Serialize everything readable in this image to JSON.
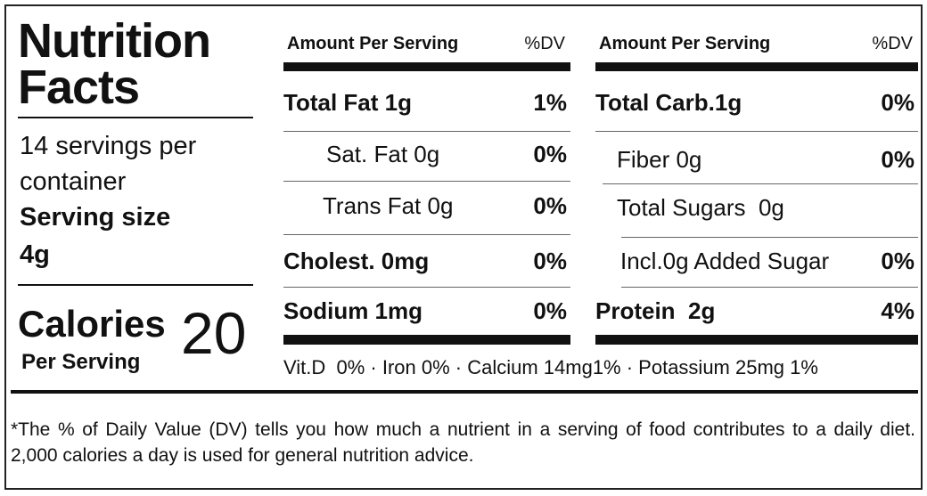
{
  "title": "Nutrition Facts",
  "servings": "14 servings per container",
  "serving_size": {
    "label": "Serving size",
    "value": "4g"
  },
  "calories": {
    "label": "Calories",
    "sublabel": "Per Serving",
    "value": "20"
  },
  "left_table": {
    "header": {
      "amount": "Amount Per Serving",
      "dv": "%DV"
    },
    "rows": [
      [
        "Total Fat 1g",
        "1%"
      ],
      [
        "Sat. Fat 0g",
        "0%"
      ],
      [
        "Trans Fat 0g",
        "0%"
      ],
      [
        "Cholest. 0mg",
        "0%"
      ],
      [
        "Sodium 1mg",
        "0%"
      ]
    ]
  },
  "right_table": {
    "header": {
      "amount": "Amount Per Serving",
      "dv": "%DV"
    },
    "rows": [
      [
        "Total Carb.1g",
        "0%"
      ],
      [
        "Fiber 0g",
        "0%"
      ],
      [
        "Total Sugars  0g"
      ],
      [
        "Incl.0g Added Sugar",
        "0%"
      ],
      [
        "Protein  2g",
        "4%"
      ]
    ]
  },
  "vitamins": "Vit.D  0% · Iron 0% · Calcium 14mg1% · Potassium 25mg 1%",
  "footnote": "*The % of Daily Value (DV) tells you how much a nutrient in a serving of food contributes to a daily diet. 2,000 calories a day is used for general nutrition advice."
}
